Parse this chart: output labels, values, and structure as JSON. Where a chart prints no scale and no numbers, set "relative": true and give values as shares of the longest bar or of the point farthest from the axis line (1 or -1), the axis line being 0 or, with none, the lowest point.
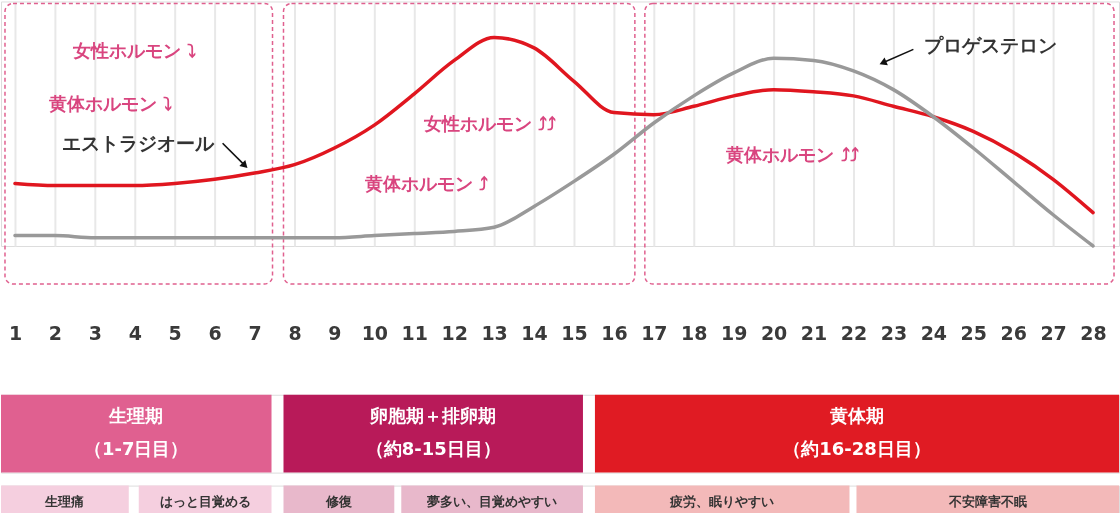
{
  "chart_data": [
    {
      "type": "line",
      "relative": true,
      "grid": "x",
      "x": [
        1,
        2,
        3,
        4,
        5,
        6,
        7,
        8,
        9,
        10,
        11,
        12,
        13,
        14,
        15,
        16,
        17,
        18,
        19,
        20,
        21,
        22,
        23,
        24,
        25,
        26,
        27,
        28
      ],
      "xlim": [
        0.65,
        28.65
      ],
      "xticks": [
        1,
        2,
        3,
        4,
        5,
        6,
        7,
        8,
        9,
        10,
        11,
        12,
        13,
        14,
        15,
        16,
        17,
        18,
        19,
        20,
        21,
        22,
        23,
        24,
        25,
        26,
        27,
        28
      ],
      "series": [
        {
          "name": "エストラジオール",
          "color": "#e0161f",
          "values": [
            0.3,
            0.29,
            0.29,
            0.29,
            0.3,
            0.32,
            0.35,
            0.39,
            0.47,
            0.58,
            0.73,
            0.89,
            1.0,
            0.95,
            0.79,
            0.64,
            0.63,
            0.67,
            0.72,
            0.75,
            0.74,
            0.72,
            0.67,
            0.62,
            0.55,
            0.45,
            0.32,
            0.16
          ]
        },
        {
          "name": "プロゲステロン",
          "color": "#999999",
          "values": [
            0.05,
            0.05,
            0.04,
            0.04,
            0.04,
            0.04,
            0.04,
            0.04,
            0.04,
            0.05,
            0.06,
            0.07,
            0.09,
            0.19,
            0.31,
            0.44,
            0.59,
            0.72,
            0.83,
            0.9,
            0.89,
            0.84,
            0.75,
            0.62,
            0.47,
            0.31,
            0.15,
            0.0
          ]
        }
      ],
      "annotations": [
        "女性ホルモン ⤵",
        "黄体ホルモン ⤵",
        "女性ホルモン ⤴⤴",
        "黄体ホルモン ⤴",
        "黄体ホルモン ⤴⤴"
      ]
    },
    {
      "type": "other",
      "categories": [
        "生理期",
        "卵胞期＋排卵期",
        "黄体期"
      ],
      "annotations": [
        "（1-7日目）",
        "（約8-15日目）",
        "（約16-28日目）"
      ],
      "colors": [
        "#e06090",
        "#b81a59",
        "#e01b23"
      ]
    },
    {
      "type": "other",
      "categories": [
        "生理痛",
        "はっと目覚める",
        "修復",
        "夢多い、目覚めやすい",
        "疲労、眠りやすい",
        "不安障害不眠"
      ],
      "colors": [
        "#f5cfdf",
        "#f5cfdf",
        "#e8b8cb",
        "#e8b8cb",
        "#f3b9b9",
        "#f3b9b9"
      ]
    }
  ]
}
